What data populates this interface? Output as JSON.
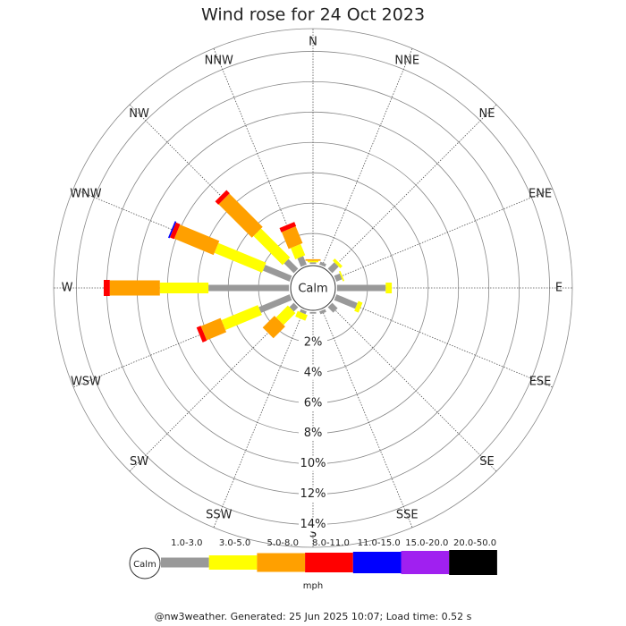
{
  "chart_data": {
    "type": "windrose",
    "title": "Wind rose for 24 Oct 2023",
    "categories": [
      "N",
      "NNE",
      "NE",
      "ENE",
      "E",
      "ESE",
      "SE",
      "SSE",
      "S",
      "SSW",
      "SW",
      "WSW",
      "W",
      "WNW",
      "NW",
      "NNW"
    ],
    "series": [
      {
        "name": "1.0-3.0",
        "color": "#999999",
        "values": [
          0.1,
          0.2,
          0.6,
          0.4,
          3.2,
          1.5,
          0.5,
          0.2,
          0.1,
          0.2,
          0.4,
          2.2,
          5.3,
          1.9,
          0.9,
          0.6
        ]
      },
      {
        "name": "3.0-5.0",
        "color": "#ffff00",
        "values": [
          0.1,
          0,
          0.2,
          0.1,
          0.4,
          0.3,
          0,
          0,
          0,
          0.4,
          1.1,
          2.6,
          3.2,
          3.4,
          2.7,
          0.8
        ]
      },
      {
        "name": "5.0-8.0",
        "color": "#ffa000",
        "values": [
          0.1,
          0,
          0,
          0,
          0,
          0,
          0,
          0,
          0,
          0,
          1.1,
          1.4,
          3.3,
          2.8,
          3.1,
          1.2
        ]
      },
      {
        "name": "8.0-11.0",
        "color": "#ff0000",
        "values": [
          0,
          0,
          0,
          0,
          0,
          0,
          0,
          0,
          0,
          0,
          0,
          0.3,
          0.4,
          0.3,
          0.3,
          0.3
        ]
      },
      {
        "name": "11.0-15.0",
        "color": "#0000ff",
        "values": [
          0,
          0,
          0,
          0,
          0,
          0,
          0,
          0,
          0,
          0,
          0,
          0,
          0,
          0.1,
          0,
          0
        ]
      },
      {
        "name": "15.0-20.0",
        "color": "#a020f0",
        "values": [
          0,
          0,
          0,
          0,
          0,
          0,
          0,
          0,
          0,
          0,
          0,
          0,
          0,
          0,
          0,
          0
        ]
      },
      {
        "name": "20.0-50.0",
        "color": "#000000",
        "values": [
          0,
          0,
          0,
          0,
          0,
          0,
          0,
          0,
          0,
          0,
          0,
          0,
          0,
          0,
          0,
          0
        ]
      }
    ],
    "rlim": [
      0,
      15.5
    ],
    "rticks": [
      {
        "value": 2,
        "label": "2%"
      },
      {
        "value": 4,
        "label": "4%"
      },
      {
        "value": 6,
        "label": "6%"
      },
      {
        "value": 8,
        "label": "8%"
      },
      {
        "value": 10,
        "label": "10%"
      },
      {
        "value": 12,
        "label": "12%"
      },
      {
        "value": 14,
        "label": "14%"
      }
    ],
    "calm_label": "Calm",
    "unit_label": "mph",
    "footer": "@nw3weather. Generated: 25 Jun 2025 10:07; Load time: 0.52 s"
  }
}
